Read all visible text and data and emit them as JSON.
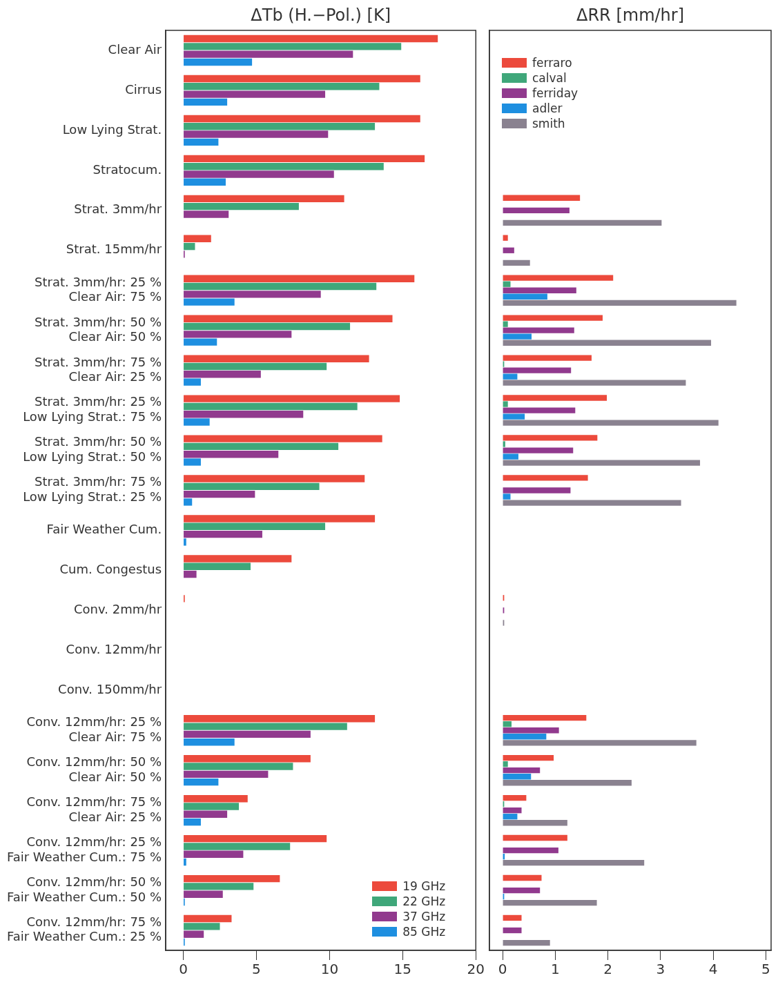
{
  "chart_data": [
    {
      "type": "bar",
      "orientation": "horizontal",
      "xlabel": "ΔTb (H.−Pol.) [K]",
      "categories": [
        "Clear Air",
        "Cirrus",
        "Low Lying Strat.",
        "Stratocum.",
        "Strat. 3mm/hr",
        "Strat. 15mm/hr",
        "Strat. 3mm/hr: 25 %\nClear Air: 75 %",
        "Strat. 3mm/hr: 50 %\nClear Air: 50 %",
        "Strat. 3mm/hr: 75 %\nClear Air: 25 %",
        "Strat. 3mm/hr: 25 %\nLow Lying Strat.: 75 %",
        "Strat. 3mm/hr: 50 %\nLow Lying Strat.: 50 %",
        "Strat. 3mm/hr: 75 %\nLow Lying Strat.: 25 %",
        "Fair Weather Cum.",
        "Cum. Congestus",
        "Conv. 2mm/hr",
        "Conv. 12mm/hr",
        "Conv. 150mm/hr",
        "Conv. 12mm/hr: 25 %\nClear Air: 75 %",
        "Conv. 12mm/hr: 50 %\nClear Air: 50 %",
        "Conv. 12mm/hr: 75 %\nClear Air: 25 %",
        "Conv. 12mm/hr: 25 %\nFair Weather Cum.: 75 %",
        "Conv. 12mm/hr: 50 %\nFair Weather Cum.: 50 %",
        "Conv. 12mm/hr: 75 %\nFair Weather Cum.: 25 %"
      ],
      "series": [
        {
          "name": "19 GHz",
          "color": "#ec4a3c",
          "values": [
            17.4,
            16.2,
            16.2,
            16.5,
            11.0,
            1.9,
            15.8,
            14.3,
            12.7,
            14.8,
            13.6,
            12.4,
            13.1,
            7.4,
            0.1,
            0,
            0,
            13.1,
            8.7,
            4.4,
            9.8,
            6.6,
            3.3
          ]
        },
        {
          "name": "22 GHz",
          "color": "#3fa77a",
          "values": [
            14.9,
            13.4,
            13.1,
            13.7,
            7.9,
            0.8,
            13.2,
            11.4,
            9.8,
            11.9,
            10.6,
            9.3,
            9.7,
            4.6,
            0,
            0,
            0,
            11.2,
            7.5,
            3.8,
            7.3,
            4.8,
            2.5
          ]
        },
        {
          "name": "37 GHz",
          "color": "#913a8e",
          "values": [
            11.6,
            9.7,
            9.9,
            10.3,
            3.1,
            0.1,
            9.4,
            7.4,
            5.3,
            8.2,
            6.5,
            4.9,
            5.4,
            0.9,
            0,
            0,
            0,
            8.7,
            5.8,
            3.0,
            4.1,
            2.7,
            1.4
          ]
        },
        {
          "name": "85 GHz",
          "color": "#1e8fe0",
          "values": [
            4.7,
            3.0,
            2.4,
            2.9,
            0,
            0,
            3.5,
            2.3,
            1.2,
            1.8,
            1.2,
            0.6,
            0.2,
            0,
            0,
            0,
            0,
            3.5,
            2.4,
            1.2,
            0.2,
            0.1,
            0.1
          ]
        }
      ],
      "xlim": [
        -1.2,
        20
      ],
      "xticks": [
        0,
        5,
        10,
        15,
        20
      ],
      "legend": "bottom right"
    },
    {
      "type": "bar",
      "orientation": "horizontal",
      "xlabel": "ΔRR [mm/hr]",
      "tick_labels": "x",
      "categories": [
        null,
        null,
        null,
        null,
        null,
        null,
        null,
        null,
        null,
        null,
        null,
        null,
        null,
        null,
        null,
        null,
        null,
        null,
        null,
        null,
        null,
        null,
        null
      ],
      "series": [
        {
          "name": "ferraro",
          "color": "#ec4a3c",
          "values": [
            null,
            null,
            null,
            null,
            1.47,
            0.1,
            2.1,
            1.9,
            1.69,
            1.98,
            1.8,
            1.62,
            null,
            null,
            0.03,
            0,
            0,
            1.59,
            0.97,
            0.45,
            1.23,
            0.74,
            0.36
          ]
        },
        {
          "name": "calval",
          "color": "#3fa77a",
          "values": [
            null,
            null,
            null,
            null,
            0,
            0,
            0.15,
            0.1,
            0.03,
            0.1,
            0.05,
            0,
            null,
            null,
            0,
            0,
            0,
            0.17,
            0.1,
            0.03,
            0,
            0,
            0
          ]
        },
        {
          "name": "ferriday",
          "color": "#913a8e",
          "values": [
            null,
            null,
            null,
            null,
            1.27,
            0.22,
            1.4,
            1.36,
            1.3,
            1.38,
            1.34,
            1.29,
            null,
            null,
            0.03,
            0,
            0,
            1.07,
            0.71,
            0.36,
            1.06,
            0.71,
            0.36
          ]
        },
        {
          "name": "adler",
          "color": "#1e8fe0",
          "values": [
            null,
            null,
            null,
            null,
            0,
            0,
            0.85,
            0.55,
            0.28,
            0.42,
            0.3,
            0.15,
            null,
            null,
            0,
            0,
            0,
            0.83,
            0.54,
            0.28,
            0.04,
            0.03,
            0
          ]
        },
        {
          "name": "smith",
          "color": "#8a8290",
          "values": [
            null,
            null,
            null,
            null,
            3.02,
            0.52,
            4.44,
            3.96,
            3.48,
            4.1,
            3.75,
            3.39,
            null,
            null,
            0.03,
            0,
            0,
            3.68,
            2.45,
            1.23,
            2.69,
            1.79,
            0.9
          ]
        }
      ],
      "xlim": [
        -0.25,
        5.1
      ],
      "xticks": [
        0,
        1,
        2,
        3,
        4,
        5
      ],
      "legend": "top left"
    }
  ]
}
